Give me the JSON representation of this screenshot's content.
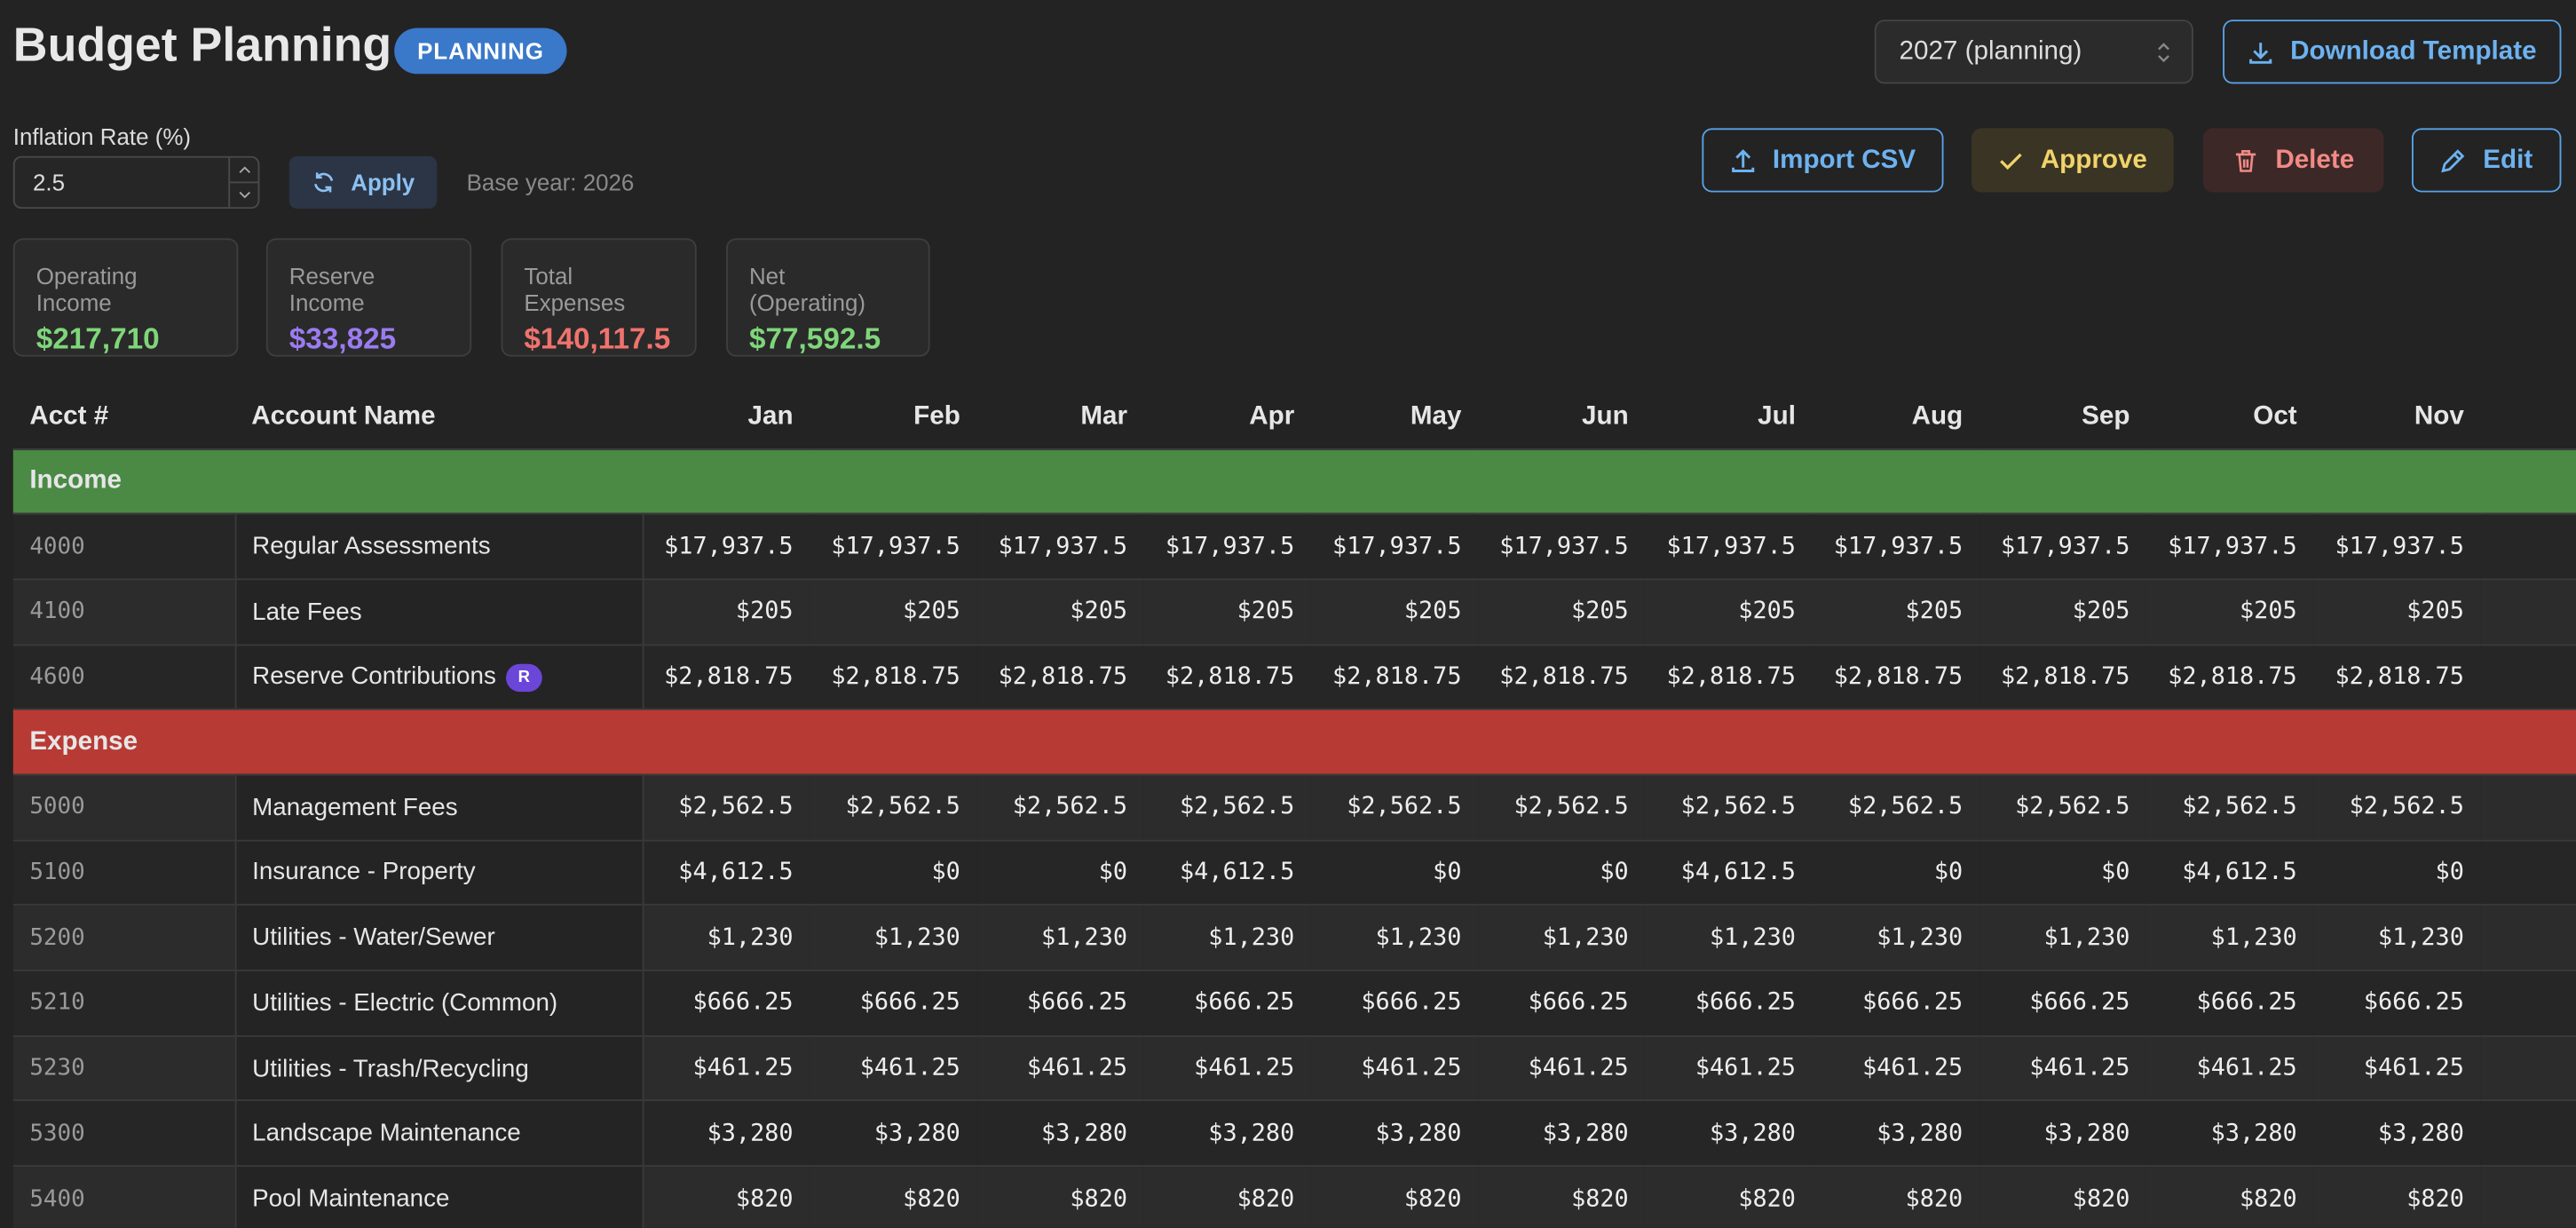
{
  "header": {
    "title": "Budget Planning",
    "badge": "PLANNING",
    "year_select": "2027 (planning)",
    "download_button": "Download Template"
  },
  "controls": {
    "inflation_label": "Inflation Rate (%)",
    "inflation_value": "2.5",
    "apply_button": "Apply",
    "base_year": "Base year: 2026",
    "actions": [
      "Import CSV",
      "Approve",
      "Delete",
      "Edit"
    ]
  },
  "summary": [
    {
      "label": "Operating Income",
      "value": "$217,710",
      "color": "#7fd67a"
    },
    {
      "label": "Reserve Income",
      "value": "$33,825",
      "color": "#9b7bf0"
    },
    {
      "label": "Total Expenses",
      "value": "$140,117.5",
      "color": "#f0736d"
    },
    {
      "label": "Net (Operating)",
      "value": "$77,592.5",
      "color": "#7fd67a"
    }
  ],
  "table": {
    "columns": [
      "Acct #",
      "Account Name",
      "Jan",
      "Feb",
      "Mar",
      "Apr",
      "May",
      "Jun",
      "Jul",
      "Aug",
      "Sep",
      "Oct",
      "Nov"
    ],
    "sections": [
      {
        "name": "Income",
        "color": "#4a8a45",
        "rows": [
          {
            "acct": "4000",
            "name": "Regular Assessments",
            "values": [
              "$17,937.5",
              "$17,937.5",
              "$17,937.5",
              "$17,937.5",
              "$17,937.5",
              "$17,937.5",
              "$17,937.5",
              "$17,937.5",
              "$17,937.5",
              "$17,937.5",
              "$17,937.5"
            ]
          },
          {
            "acct": "4100",
            "name": "Late Fees",
            "values": [
              "$205",
              "$205",
              "$205",
              "$205",
              "$205",
              "$205",
              "$205",
              "$205",
              "$205",
              "$205",
              "$205"
            ]
          },
          {
            "acct": "4600",
            "name": "Reserve Contributions",
            "badge": "R",
            "values": [
              "$2,818.75",
              "$2,818.75",
              "$2,818.75",
              "$2,818.75",
              "$2,818.75",
              "$2,818.75",
              "$2,818.75",
              "$2,818.75",
              "$2,818.75",
              "$2,818.75",
              "$2,818.75"
            ]
          }
        ]
      },
      {
        "name": "Expense",
        "color": "#b83a35",
        "rows": [
          {
            "acct": "5000",
            "name": "Management Fees",
            "values": [
              "$2,562.5",
              "$2,562.5",
              "$2,562.5",
              "$2,562.5",
              "$2,562.5",
              "$2,562.5",
              "$2,562.5",
              "$2,562.5",
              "$2,562.5",
              "$2,562.5",
              "$2,562.5"
            ]
          },
          {
            "acct": "5100",
            "name": "Insurance - Property",
            "values": [
              "$4,612.5",
              "$0",
              "$0",
              "$4,612.5",
              "$0",
              "$0",
              "$4,612.5",
              "$0",
              "$0",
              "$4,612.5",
              "$0"
            ]
          },
          {
            "acct": "5200",
            "name": "Utilities - Water/Sewer",
            "values": [
              "$1,230",
              "$1,230",
              "$1,230",
              "$1,230",
              "$1,230",
              "$1,230",
              "$1,230",
              "$1,230",
              "$1,230",
              "$1,230",
              "$1,230"
            ]
          },
          {
            "acct": "5210",
            "name": "Utilities - Electric (Common)",
            "values": [
              "$666.25",
              "$666.25",
              "$666.25",
              "$666.25",
              "$666.25",
              "$666.25",
              "$666.25",
              "$666.25",
              "$666.25",
              "$666.25",
              "$666.25"
            ]
          },
          {
            "acct": "5230",
            "name": "Utilities - Trash/Recycling",
            "values": [
              "$461.25",
              "$461.25",
              "$461.25",
              "$461.25",
              "$461.25",
              "$461.25",
              "$461.25",
              "$461.25",
              "$461.25",
              "$461.25",
              "$461.25"
            ]
          },
          {
            "acct": "5300",
            "name": "Landscape Maintenance",
            "values": [
              "$3,280",
              "$3,280",
              "$3,280",
              "$3,280",
              "$3,280",
              "$3,280",
              "$3,280",
              "$3,280",
              "$3,280",
              "$3,280",
              "$3,280"
            ]
          },
          {
            "acct": "5400",
            "name": "Pool Maintenance",
            "values": [
              "$820",
              "$820",
              "$820",
              "$820",
              "$820",
              "$820",
              "$820",
              "$820",
              "$820",
              "$820",
              "$820"
            ]
          }
        ]
      }
    ]
  }
}
